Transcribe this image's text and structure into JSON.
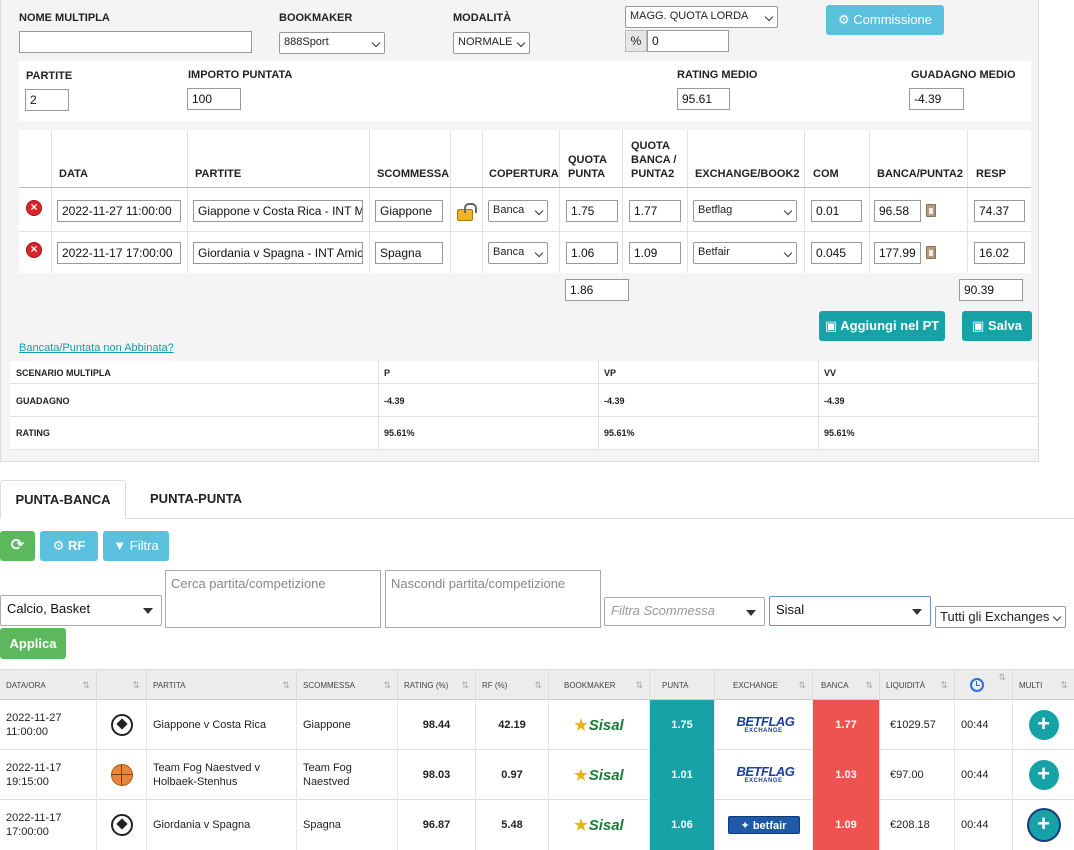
{
  "form": {
    "nome_multipla_label": "NOME MULTIPLA",
    "nome_multipla_value": "",
    "bookmaker_label": "BOOKMAKER",
    "bookmaker_value": "888Sport",
    "modalita_label": "MODALITÀ",
    "modalita_value": "NORMALE",
    "quota_mode_value": "MAGG. QUOTA LORDA",
    "percent_symbol": "%",
    "percent_value": "0",
    "commissione_button": "Commissione"
  },
  "summary": {
    "partite_label": "PARTITE",
    "partite_value": "2",
    "importo_label": "IMPORTO PUNTATA",
    "importo_value": "100",
    "rating_label": "RATING MEDIO",
    "rating_value": "95.61",
    "guadagno_label": "GUADAGNO MEDIO",
    "guadagno_value": "-4.39"
  },
  "legs_table": {
    "headers": {
      "data": "DATA",
      "partite": "PARTITE",
      "scommessa": "SCOMMESSA",
      "copertura": "COPERTURA",
      "quota_punta": [
        "QUOTA",
        "PUNTA"
      ],
      "quota_banca": [
        "QUOTA",
        "BANCA /",
        "PUNTA2"
      ],
      "exchange": "EXCHANGE/BOOK2",
      "com": "COM",
      "banca_punta2": "BANCA/PUNTA2",
      "resp": "RESP"
    },
    "rows": [
      {
        "data": "2022-11-27 11:00:00",
        "partita": "Giappone v Costa Rica - INT M",
        "scommessa": "Giappone",
        "copertura": "Banca",
        "quota_punta": "1.75",
        "quota_banca": "1.77",
        "exchange": "Betflag",
        "com": "0.01",
        "banca": "96.58",
        "resp": "74.37"
      },
      {
        "data": "2022-11-17 17:00:00",
        "partita": "Giordania v Spagna - INT Amicl",
        "scommessa": "Spagna",
        "copertura": "Banca",
        "quota_punta": "1.06",
        "quota_banca": "1.09",
        "exchange": "Betfair",
        "com": "0.045",
        "banca": "177.99",
        "resp": "16.02"
      }
    ],
    "total_quota": "1.86",
    "total_resp": "90.39"
  },
  "actions": {
    "aggiungi": "Aggiungi nel PT",
    "salva": "Salva",
    "link": "Bancata/Puntata non Abbinata?"
  },
  "scenario": {
    "header": [
      "SCENARIO MULTIPLA",
      "P",
      "VP",
      "VV"
    ],
    "rows": [
      {
        "label": "GUADAGNO",
        "values": [
          "-4.39",
          "-4.39",
          "-4.39"
        ]
      },
      {
        "label": "RATING",
        "values": [
          "95.61%",
          "95.61%",
          "95.61%"
        ]
      }
    ]
  },
  "tabs": [
    "PUNTA-BANCA",
    "PUNTA-PUNTA"
  ],
  "toolbar": {
    "rf": "RF",
    "filtra": "Filtra"
  },
  "filters": {
    "sport": "Calcio, Basket",
    "cerca_placeholder": "Cerca partita/competizione",
    "nascondi_placeholder": "Nascondi partita/competizione",
    "scommessa_placeholder": "Filtra Scommessa",
    "bookmaker": "Sisal",
    "exchanges": "Tutti gli Exchanges",
    "applica": "Applica"
  },
  "results": {
    "headers": [
      "DATA/ORA",
      "",
      "PARTITA",
      "SCOMMESSA",
      "RATING (%)",
      "RF (%)",
      "BOOKMAKER",
      "PUNTA",
      "EXCHANGE",
      "BANCA",
      "LIQUIDITÀ",
      "",
      "MULTI"
    ],
    "rows": [
      {
        "data": "2022-11-27",
        "ora": "11:00:00",
        "sport": "soccer",
        "partita": [
          "Giappone v Costa Rica"
        ],
        "scommessa": [
          "Giappone"
        ],
        "rating": "98.44",
        "rf": "42.19",
        "bookmaker": "Sisal",
        "punta": "1.75",
        "exchange": "betflag",
        "banca": "1.77",
        "liquidita": "€1029.57",
        "tempo": "00:44"
      },
      {
        "data": "2022-11-17",
        "ora": "19:15:00",
        "sport": "basket",
        "partita": [
          "Team Fog Naestved v",
          "Holbaek-Stenhus"
        ],
        "scommessa": [
          "Team Fog",
          "Naestved"
        ],
        "rating": "98.03",
        "rf": "0.97",
        "bookmaker": "Sisal",
        "punta": "1.01",
        "exchange": "betflag",
        "banca": "1.03",
        "liquidita": "€97.00",
        "tempo": "00:44"
      },
      {
        "data": "2022-11-17",
        "ora": "17:00:00",
        "sport": "soccer",
        "partita": [
          "Giordania v Spagna"
        ],
        "scommessa": [
          "Spagna"
        ],
        "rating": "96.87",
        "rf": "5.48",
        "bookmaker": "Sisal",
        "punta": "1.06",
        "exchange": "betfair",
        "banca": "1.09",
        "liquidita": "€208.18",
        "tempo": "00:44"
      }
    ],
    "logo_text": {
      "sisal": "Sisal",
      "betflag": "BETFLAG",
      "betflag_sub": "EXCHANGE",
      "betfair": "betfair"
    }
  },
  "colors": {
    "teal": "#17a2a8",
    "info": "#5bc0de",
    "green": "#5cb85c",
    "red": "#ef5350"
  }
}
